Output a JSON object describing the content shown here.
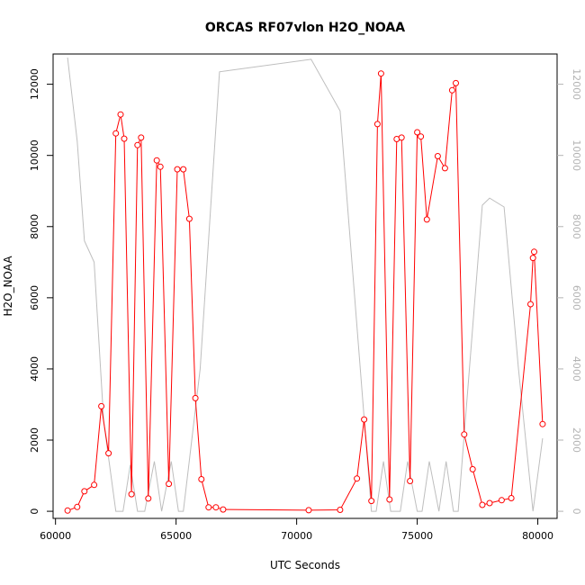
{
  "chart_data": {
    "type": "line",
    "title": "ORCAS RF07vlon H2O_NOAA",
    "xlabel": "UTC Seconds",
    "ylabel": "H2O_NOAA",
    "xlim": [
      59900,
      80800
    ],
    "ylim": [
      -200,
      12850
    ],
    "y2lim": [
      -200,
      12850
    ],
    "x_ticks": [
      60000,
      65000,
      70000,
      75000,
      80000
    ],
    "y_ticks": [
      0,
      2000,
      4000,
      6000,
      8000,
      10000,
      12000
    ],
    "y2_ticks": [
      0,
      2000,
      4000,
      6000,
      8000,
      10000,
      12000
    ],
    "colors": {
      "primary": "#ff0000",
      "secondary": "#bebebe",
      "axis": "#000000",
      "right_axis": "#b3b3b3"
    },
    "series": [
      {
        "name": "H2O_NOAA",
        "axis": "left",
        "style": "line-markers",
        "x": [
          60500,
          60900,
          61200,
          61600,
          61900,
          62200,
          62500,
          62700,
          62850,
          63150,
          63400,
          63550,
          63850,
          64200,
          64350,
          64700,
          65050,
          65300,
          65550,
          65800,
          66050,
          66350,
          66650,
          66950,
          70500,
          71800,
          72500,
          72800,
          73100,
          73350,
          73500,
          73850,
          74150,
          74350,
          74700,
          75000,
          75150,
          75400,
          75850,
          76150,
          76450,
          76600,
          76950,
          77300,
          77700,
          78000,
          78500,
          78900,
          79700,
          79800,
          79850,
          80200
        ],
        "values": [
          20,
          120,
          560,
          740,
          2950,
          1630,
          10620,
          11150,
          10470,
          480,
          10290,
          10500,
          360,
          9860,
          9680,
          770,
          9610,
          9610,
          8220,
          3180,
          900,
          110,
          110,
          50,
          30,
          40,
          920,
          2580,
          290,
          10880,
          12300,
          330,
          10460,
          10500,
          850,
          10650,
          10530,
          8200,
          9980,
          9640,
          11830,
          12030,
          2160,
          1180,
          180,
          230,
          310,
          370,
          5820,
          7120,
          7290,
          2450
        ]
      },
      {
        "name": "vlon",
        "axis": "right",
        "style": "line",
        "x": [
          60500,
          60900,
          61200,
          61600,
          62000,
          62500,
          62800,
          63100,
          63400,
          63700,
          64100,
          64400,
          64800,
          65100,
          65300,
          66000,
          66800,
          70600,
          71800,
          73100,
          73300,
          73600,
          73900,
          74300,
          74600,
          75000,
          75200,
          75500,
          75900,
          76200,
          76500,
          76700,
          77700,
          78000,
          78600,
          79200,
          79800,
          80200
        ],
        "values": [
          12750,
          10400,
          7600,
          7000,
          2500,
          0,
          0,
          1300,
          0,
          0,
          1400,
          0,
          1400,
          0,
          0,
          4000,
          12350,
          12700,
          11250,
          0,
          0,
          1400,
          0,
          0,
          1400,
          0,
          0,
          1400,
          0,
          1400,
          0,
          0,
          8600,
          8800,
          8550,
          4000,
          0,
          2050
        ]
      }
    ]
  }
}
